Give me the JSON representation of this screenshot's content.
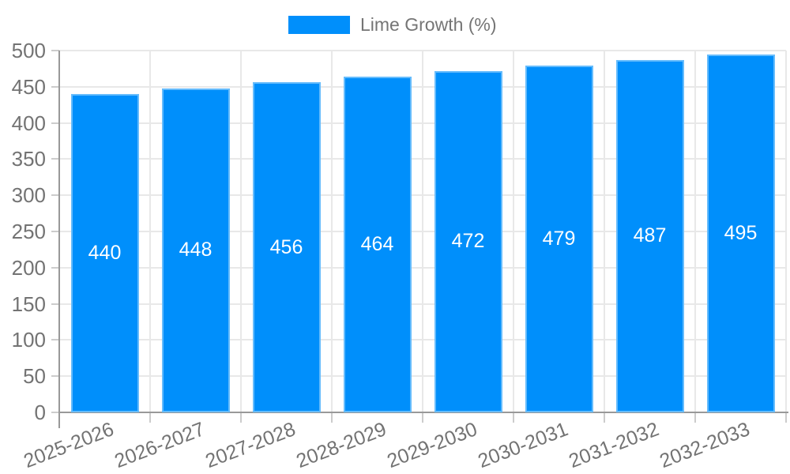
{
  "legend": {
    "position": "top"
  },
  "colors": {
    "bar": "#008FFB",
    "grid": "#e8e8e8",
    "axis": "#999999",
    "tick": "#cccccc",
    "axis_text": "#737373",
    "legend_text": "#757575",
    "bar_label_text": "#ffffff",
    "background": "#ffffff"
  },
  "chart_data": {
    "type": "bar",
    "title": "",
    "xlabel": "",
    "ylabel": "",
    "categories": [
      "2025-2026",
      "2026-2027",
      "2027-2028",
      "2028-2029",
      "2029-2030",
      "2030-2031",
      "2031-2032",
      "2032-2033"
    ],
    "series": [
      {
        "name": "Lime Growth (%)",
        "values": [
          440,
          448,
          456,
          464,
          472,
          479,
          487,
          495
        ]
      }
    ],
    "bar_value_labels_shown": true,
    "ylim": [
      0,
      500
    ],
    "y_ticks": [
      0,
      50,
      100,
      150,
      200,
      250,
      300,
      350,
      400,
      450,
      500
    ],
    "grid": true,
    "legend_position": "top",
    "x_label_rotation_deg": -21
  }
}
